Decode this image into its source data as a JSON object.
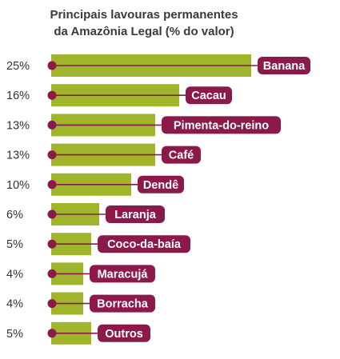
{
  "chart_data": {
    "type": "bar",
    "orientation": "horizontal",
    "title_line1": "Principais lavouras permanentes",
    "title_line2": "da Amazônia Legal (% do valor)",
    "categories": [
      "Banana",
      "Cacau",
      "Pimenta-do-reino",
      "Café",
      "Dendê",
      "Laranja",
      "Coco-da-baía",
      "Maracujá",
      "Borracha",
      "Outros"
    ],
    "values": [
      25,
      16,
      13,
      13,
      10,
      6,
      5,
      4,
      4,
      5
    ],
    "value_labels": [
      "25%",
      "16%",
      "13%",
      "13%",
      "10%",
      "6%",
      "5%",
      "4%",
      "4%",
      "5%"
    ],
    "xlabel": "",
    "ylabel": "",
    "grid": false,
    "legend": "none",
    "colors": {
      "bar": "#a0b52b",
      "line": "#8b1a4a",
      "label_bg": "#8b1a4a",
      "label_text": "#ffffff"
    }
  }
}
